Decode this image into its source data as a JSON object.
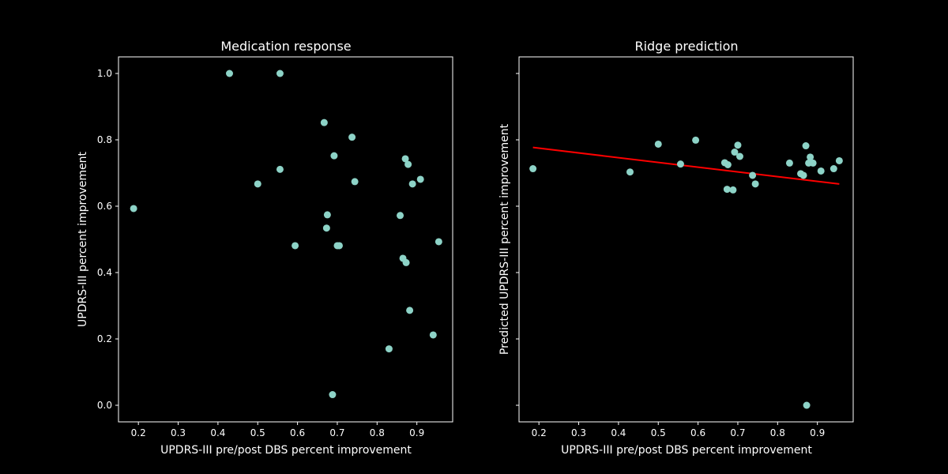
{
  "figure": {
    "background": "#000000"
  },
  "chart_data": [
    {
      "type": "scatter",
      "title": "Medication response",
      "xlabel": "UPDRS-III pre/post DBS percent improvement",
      "ylabel": "UPDRS-III percent improvement",
      "xlim": [
        0.15,
        0.99
      ],
      "ylim": [
        -0.05,
        1.05
      ],
      "xticks": [
        "0.2",
        "0.3",
        "0.4",
        "0.5",
        "0.6",
        "0.7",
        "0.8",
        "0.9"
      ],
      "yticks": [
        "0.0",
        "0.2",
        "0.4",
        "0.6",
        "0.8",
        "1.0"
      ],
      "point_color": "#8dd3c7",
      "points": [
        {
          "x": 0.188,
          "y": 0.593
        },
        {
          "x": 0.429,
          "y": 1.0
        },
        {
          "x": 0.556,
          "y": 1.0
        },
        {
          "x": 0.5,
          "y": 0.667
        },
        {
          "x": 0.556,
          "y": 0.711
        },
        {
          "x": 0.594,
          "y": 0.481
        },
        {
          "x": 0.667,
          "y": 0.852
        },
        {
          "x": 0.673,
          "y": 0.534
        },
        {
          "x": 0.675,
          "y": 0.574
        },
        {
          "x": 0.688,
          "y": 0.032
        },
        {
          "x": 0.692,
          "y": 0.752
        },
        {
          "x": 0.7,
          "y": 0.481
        },
        {
          "x": 0.705,
          "y": 0.481
        },
        {
          "x": 0.737,
          "y": 0.808
        },
        {
          "x": 0.744,
          "y": 0.674
        },
        {
          "x": 0.83,
          "y": 0.17
        },
        {
          "x": 0.858,
          "y": 0.572
        },
        {
          "x": 0.865,
          "y": 0.443
        },
        {
          "x": 0.871,
          "y": 0.743
        },
        {
          "x": 0.873,
          "y": 0.43
        },
        {
          "x": 0.878,
          "y": 0.726
        },
        {
          "x": 0.882,
          "y": 0.286
        },
        {
          "x": 0.889,
          "y": 0.667
        },
        {
          "x": 0.909,
          "y": 0.681
        },
        {
          "x": 0.941,
          "y": 0.212
        },
        {
          "x": 0.955,
          "y": 0.493
        }
      ]
    },
    {
      "type": "scatter",
      "title": "Ridge prediction",
      "xlabel": "UPDRS-III pre/post DBS percent improvement",
      "ylabel": "Predicted UPDRS-III percent improvement",
      "xlim": [
        0.15,
        0.99
      ],
      "ylim": [
        -0.05,
        1.05
      ],
      "xticks": [
        "0.2",
        "0.3",
        "0.4",
        "0.5",
        "0.6",
        "0.7",
        "0.8",
        "0.9"
      ],
      "yticks_visible": false,
      "point_color": "#8dd3c7",
      "line_color": "#ff0000",
      "fit_line": {
        "x": [
          0.185,
          0.955
        ],
        "y": [
          0.777,
          0.667
        ]
      },
      "points": [
        {
          "x": 0.185,
          "y": 0.713
        },
        {
          "x": 0.429,
          "y": 0.703
        },
        {
          "x": 0.5,
          "y": 0.787
        },
        {
          "x": 0.556,
          "y": 0.727
        },
        {
          "x": 0.594,
          "y": 0.799
        },
        {
          "x": 0.667,
          "y": 0.731
        },
        {
          "x": 0.673,
          "y": 0.651
        },
        {
          "x": 0.675,
          "y": 0.725
        },
        {
          "x": 0.688,
          "y": 0.649
        },
        {
          "x": 0.692,
          "y": 0.763
        },
        {
          "x": 0.7,
          "y": 0.784
        },
        {
          "x": 0.705,
          "y": 0.75
        },
        {
          "x": 0.737,
          "y": 0.693
        },
        {
          "x": 0.744,
          "y": 0.667
        },
        {
          "x": 0.83,
          "y": 0.73
        },
        {
          "x": 0.858,
          "y": 0.698
        },
        {
          "x": 0.865,
          "y": 0.693
        },
        {
          "x": 0.871,
          "y": 0.782
        },
        {
          "x": 0.873,
          "y": 0.0
        },
        {
          "x": 0.878,
          "y": 0.73
        },
        {
          "x": 0.882,
          "y": 0.748
        },
        {
          "x": 0.889,
          "y": 0.73
        },
        {
          "x": 0.909,
          "y": 0.706
        },
        {
          "x": 0.941,
          "y": 0.713
        },
        {
          "x": 0.955,
          "y": 0.737
        }
      ]
    }
  ]
}
